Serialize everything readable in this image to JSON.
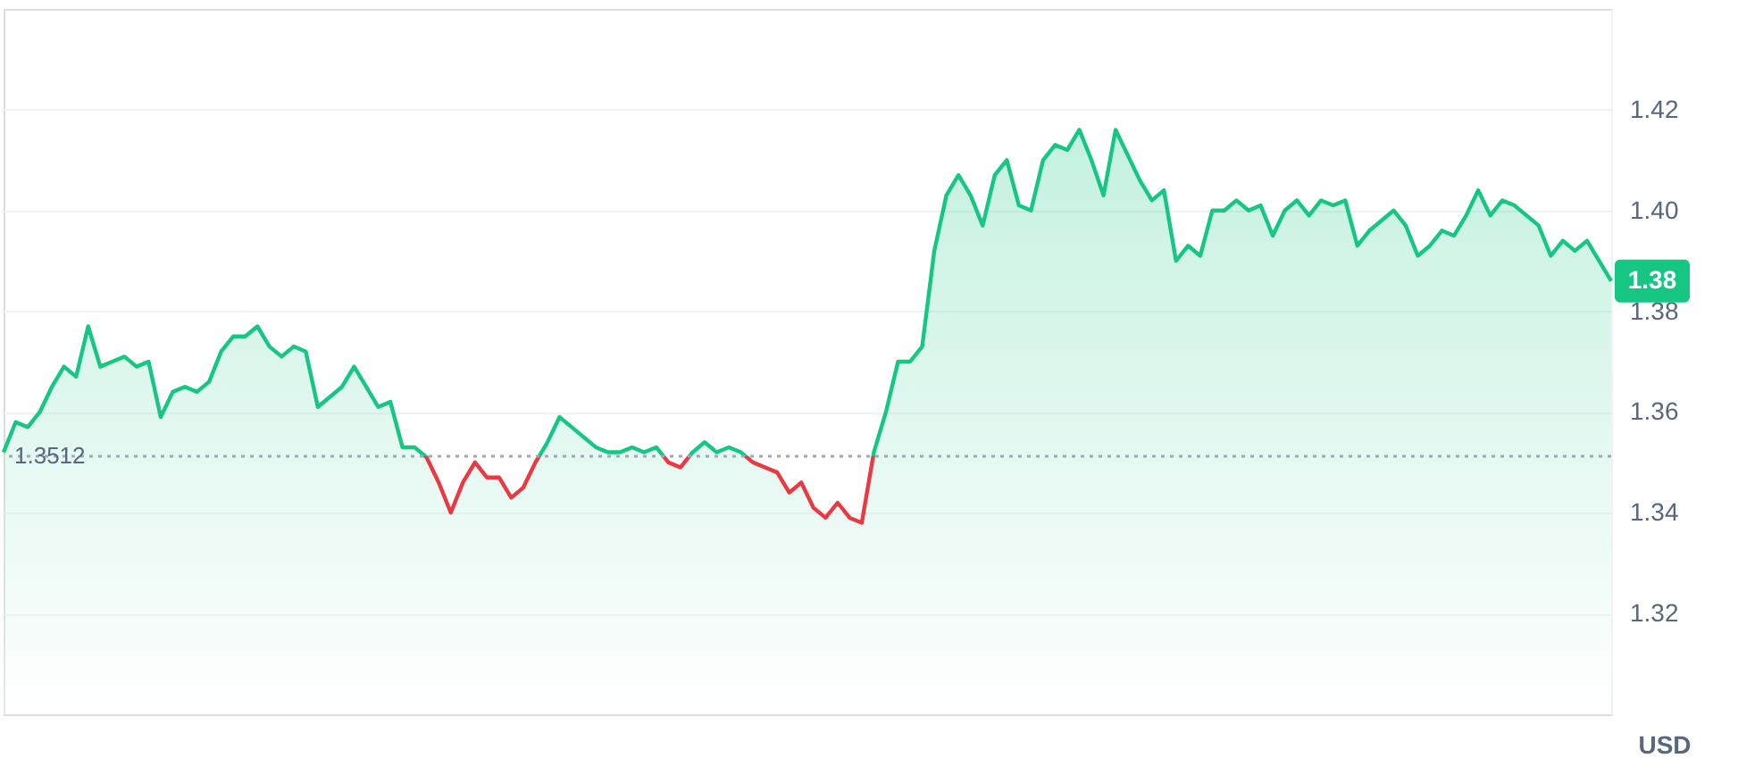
{
  "chart_data": {
    "type": "area",
    "ylabel": "USD",
    "categories": [
      null,
      null,
      null,
      null,
      null,
      null,
      null,
      null,
      null,
      null,
      null,
      null,
      null,
      null,
      null,
      null,
      null,
      null,
      null,
      null,
      null,
      null,
      null,
      null,
      null,
      null,
      null,
      null,
      null,
      null,
      null,
      null,
      null,
      null,
      null,
      null,
      null,
      null,
      null,
      null,
      null,
      null,
      null,
      null,
      null,
      null,
      null,
      null,
      null,
      null,
      null,
      null,
      null,
      null,
      null,
      null,
      null,
      null,
      null,
      null,
      null,
      null,
      null,
      null,
      null,
      null,
      null,
      null,
      null,
      null,
      null,
      null,
      null,
      null,
      null,
      null,
      null,
      null,
      null,
      null,
      null,
      null,
      null,
      null,
      null,
      null,
      null,
      null,
      null,
      null,
      null,
      null,
      null,
      null,
      null,
      null,
      null,
      null,
      null,
      null,
      null,
      null,
      null,
      null,
      null,
      null,
      null,
      null,
      null,
      null,
      null,
      null,
      null,
      null,
      null,
      null,
      null,
      null,
      null,
      null,
      null,
      null,
      null,
      null,
      null,
      null,
      null,
      null,
      null,
      null,
      null,
      null,
      null,
      null
    ],
    "ylim": [
      1.3,
      1.44
    ],
    "yticks": [
      1.32,
      1.34,
      1.36,
      1.38,
      {
        "value": 1.4,
        "label": "1.40"
      },
      1.42
    ],
    "grid": "y",
    "tick_labels": "y",
    "line_style": "solid",
    "series": [
      {
        "color": "#16c784",
        "values": [
          1.352,
          1.358,
          1.357,
          1.36,
          1.365,
          1.369,
          1.367,
          1.377,
          1.369,
          1.37,
          1.371,
          1.369,
          1.37,
          1.359,
          1.364,
          1.365,
          1.364,
          1.366,
          1.372,
          1.375,
          1.375,
          1.377,
          1.373,
          1.371,
          1.373,
          1.372,
          1.361,
          1.363,
          1.365,
          1.369,
          1.365,
          1.361,
          1.362,
          1.353,
          1.353,
          1.351,
          1.346,
          1.34,
          1.346,
          1.35,
          1.347,
          1.347,
          1.343,
          1.345,
          1.35,
          1.354,
          1.359,
          1.357,
          1.355,
          1.353,
          1.352,
          1.352,
          1.353,
          1.352,
          1.353,
          1.35,
          1.349,
          1.352,
          1.354,
          1.352,
          1.353,
          1.352,
          1.35,
          1.349,
          1.348,
          1.344,
          1.346,
          1.341,
          1.339,
          1.342,
          1.339,
          1.338,
          1.352,
          1.36,
          1.37,
          1.37,
          1.373,
          1.392,
          1.403,
          1.407,
          1.403,
          1.397,
          1.407,
          1.41,
          1.401,
          1.4,
          1.41,
          1.413,
          1.412,
          1.416,
          1.41,
          1.403,
          1.416,
          1.411,
          1.406,
          1.402,
          1.404,
          1.39,
          1.393,
          1.391,
          1.4,
          1.4,
          1.402,
          1.4,
          1.401,
          1.395,
          1.4,
          1.402,
          1.399,
          1.402,
          1.401,
          1.402,
          1.393,
          1.396,
          1.398,
          1.4,
          1.397,
          1.391,
          1.393,
          1.396,
          1.395,
          1.399,
          1.404,
          1.399,
          1.402,
          1.401,
          1.399,
          1.397,
          1.391,
          1.394,
          1.392,
          1.394,
          1.39,
          1.386
        ]
      }
    ],
    "ref_lines": [
      {
        "axis": "y",
        "value": 1.3512,
        "label": "1.3512",
        "color": "#a1a7bb",
        "line_style": "dotted"
      }
    ],
    "annotations": [
      {
        "text": "1.38",
        "y": 1.386
      }
    ]
  }
}
